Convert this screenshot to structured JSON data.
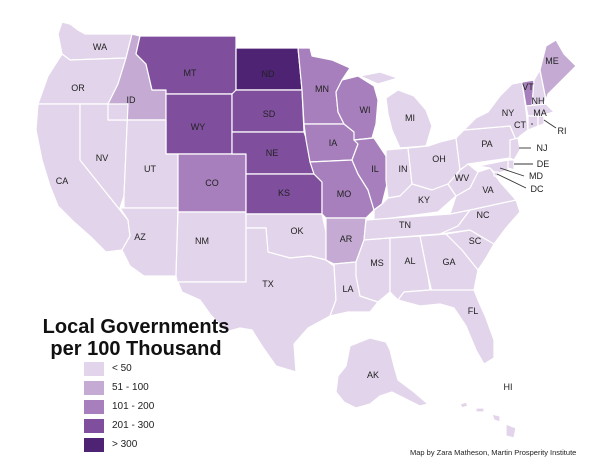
{
  "title": {
    "line1": "Local Governments",
    "line2": "per 100 Thousand"
  },
  "credit": "Map by Zara Matheson, Martin Prosperity Institute",
  "legend": [
    {
      "label": "< 50",
      "color": "#e2d4ea"
    },
    {
      "label": "51 - 100",
      "color": "#c5abd3"
    },
    {
      "label": "101 - 200",
      "color": "#a77fbc"
    },
    {
      "label": "201 - 300",
      "color": "#7f4f9d"
    },
    {
      "label": "> 300",
      "color": "#4f2374"
    }
  ],
  "states": {
    "WA": {
      "label": "WA",
      "class": 0
    },
    "OR": {
      "label": "OR",
      "class": 0
    },
    "CA": {
      "label": "CA",
      "class": 0
    },
    "NV": {
      "label": "NV",
      "class": 0
    },
    "ID": {
      "label": "ID",
      "class": 1
    },
    "MT": {
      "label": "MT",
      "class": 3
    },
    "WY": {
      "label": "WY",
      "class": 3
    },
    "UT": {
      "label": "UT",
      "class": 0
    },
    "AZ": {
      "label": "AZ",
      "class": 0
    },
    "CO": {
      "label": "CO",
      "class": 2
    },
    "NM": {
      "label": "NM",
      "class": 0
    },
    "ND": {
      "label": "ND",
      "class": 4
    },
    "SD": {
      "label": "SD",
      "class": 3
    },
    "NE": {
      "label": "NE",
      "class": 3
    },
    "KS": {
      "label": "KS",
      "class": 3
    },
    "OK": {
      "label": "OK",
      "class": 0
    },
    "TX": {
      "label": "TX",
      "class": 0
    },
    "MN": {
      "label": "MN",
      "class": 2
    },
    "IA": {
      "label": "IA",
      "class": 2
    },
    "MO": {
      "label": "MO",
      "class": 2
    },
    "AR": {
      "label": "AR",
      "class": 1
    },
    "LA": {
      "label": "LA",
      "class": 0
    },
    "WI": {
      "label": "WI",
      "class": 2
    },
    "IL": {
      "label": "IL",
      "class": 2
    },
    "MI": {
      "label": "MI",
      "class": 0
    },
    "IN": {
      "label": "IN",
      "class": 0
    },
    "OH": {
      "label": "OH",
      "class": 0
    },
    "KY": {
      "label": "KY",
      "class": 0
    },
    "TN": {
      "label": "TN",
      "class": 0
    },
    "MS": {
      "label": "MS",
      "class": 0
    },
    "AL": {
      "label": "AL",
      "class": 0
    },
    "GA": {
      "label": "GA",
      "class": 0
    },
    "FL": {
      "label": "FL",
      "class": 0
    },
    "SC": {
      "label": "SC",
      "class": 0
    },
    "NC": {
      "label": "NC",
      "class": 0
    },
    "VA": {
      "label": "VA",
      "class": 0
    },
    "WV": {
      "label": "WV",
      "class": 0
    },
    "PA": {
      "label": "PA",
      "class": 0
    },
    "NY": {
      "label": "NY",
      "class": 0
    },
    "VT": {
      "label": "VT",
      "class": 2
    },
    "NH": {
      "label": "NH",
      "class": 0
    },
    "ME": {
      "label": "ME",
      "class": 1
    },
    "MA": {
      "label": "MA",
      "class": 0
    },
    "RI": {
      "label": "RI",
      "class": 0
    },
    "CT": {
      "label": "CT",
      "class": 0
    },
    "NJ": {
      "label": "NJ",
      "class": 0
    },
    "DE": {
      "label": "DE",
      "class": 0
    },
    "MD": {
      "label": "MD",
      "class": 0
    },
    "DC": {
      "label": "DC",
      "class": 0
    },
    "AK": {
      "label": "AK",
      "class": 0
    },
    "HI": {
      "label": "HI",
      "class": 0
    }
  }
}
